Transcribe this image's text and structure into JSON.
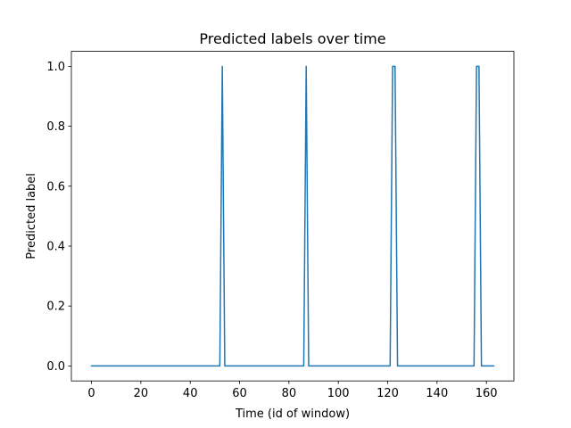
{
  "chart_data": {
    "type": "line",
    "title": "Predicted labels over time",
    "xlabel": "Time (id of window)",
    "ylabel": "Predicted label",
    "xlim": [
      -8.15,
      171.15
    ],
    "ylim": [
      -0.05,
      1.05
    ],
    "xticks": [
      0,
      20,
      40,
      60,
      80,
      100,
      120,
      140,
      160
    ],
    "yticks": [
      0.0,
      0.2,
      0.4,
      0.6,
      0.8,
      1.0
    ],
    "xtick_labels": [
      "0",
      "20",
      "40",
      "60",
      "80",
      "100",
      "120",
      "140",
      "160"
    ],
    "ytick_labels": [
      "0.0",
      "0.2",
      "0.4",
      "0.6",
      "0.8",
      "1.0"
    ],
    "grid": false,
    "series": [
      {
        "color": "#1f77b4",
        "x": [
          0,
          52,
          53,
          54,
          86,
          87,
          88,
          121,
          122,
          123,
          124,
          155,
          156,
          157,
          158,
          163
        ],
        "y": [
          0,
          0,
          1,
          0,
          0,
          1,
          0,
          0,
          1,
          1,
          0,
          0,
          1,
          1,
          0,
          0
        ]
      }
    ]
  }
}
